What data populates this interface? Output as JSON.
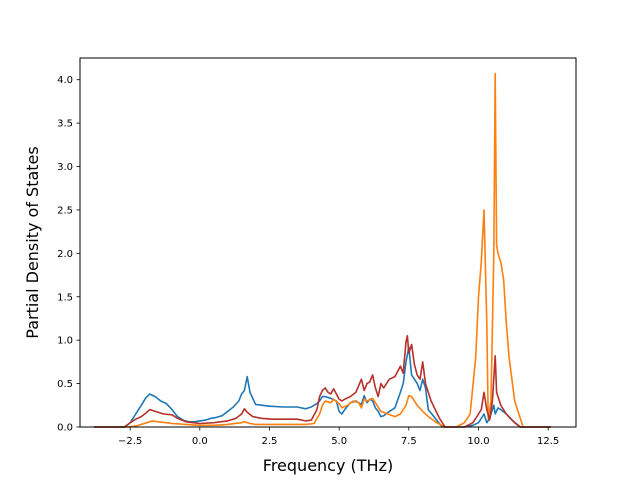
{
  "chart_data": {
    "type": "line",
    "title": "",
    "xlabel": "Frequency (THz)",
    "ylabel": "Partial Density of States",
    "xlim": [
      -4.3,
      13.5
    ],
    "ylim": [
      0,
      4.25
    ],
    "xticks": [
      -2.5,
      0.0,
      2.5,
      5.0,
      7.5,
      10.0,
      12.5
    ],
    "xtick_labels": [
      "−2.5",
      "0.0",
      "2.5",
      "5.0",
      "7.5",
      "10.0",
      "12.5"
    ],
    "yticks": [
      0.0,
      0.5,
      1.0,
      1.5,
      2.0,
      2.5,
      3.0,
      3.5,
      4.0
    ],
    "ytick_labels": [
      "0.0",
      "0.5",
      "1.0",
      "1.5",
      "2.0",
      "2.5",
      "3.0",
      "3.5",
      "4.0"
    ],
    "grid": false,
    "series": [
      {
        "color": "#1f77b4",
        "x": [
          -3.8,
          -2.7,
          -2.5,
          -2.3,
          -2.1,
          -1.95,
          -1.8,
          -1.6,
          -1.4,
          -1.2,
          -1.0,
          -0.8,
          -0.6,
          -0.4,
          -0.2,
          0.0,
          0.2,
          0.4,
          0.6,
          0.8,
          1.0,
          1.2,
          1.4,
          1.5,
          1.6,
          1.7,
          1.8,
          2.0,
          2.5,
          3.0,
          3.5,
          3.8,
          4.0,
          4.2,
          4.3,
          4.4,
          4.5,
          4.7,
          4.9,
          5.0,
          5.1,
          5.2,
          5.4,
          5.6,
          5.8,
          5.9,
          6.0,
          6.1,
          6.2,
          6.3,
          6.4,
          6.5,
          6.6,
          6.8,
          7.0,
          7.2,
          7.3,
          7.4,
          7.5,
          7.6,
          7.7,
          7.8,
          7.9,
          8.0,
          8.1,
          8.2,
          8.5,
          8.7,
          9.0,
          9.5,
          9.8,
          10.0,
          10.2,
          10.3,
          10.4,
          10.5,
          10.55,
          10.6,
          10.7,
          10.8,
          11.0,
          11.2,
          11.5,
          12.0,
          12.6
        ],
        "y": [
          0,
          0,
          0.05,
          0.15,
          0.25,
          0.33,
          0.38,
          0.35,
          0.3,
          0.27,
          0.2,
          0.12,
          0.08,
          0.06,
          0.06,
          0.07,
          0.08,
          0.1,
          0.11,
          0.13,
          0.18,
          0.23,
          0.3,
          0.38,
          0.42,
          0.58,
          0.4,
          0.26,
          0.24,
          0.23,
          0.23,
          0.21,
          0.23,
          0.27,
          0.3,
          0.35,
          0.35,
          0.33,
          0.3,
          0.18,
          0.15,
          0.2,
          0.28,
          0.3,
          0.26,
          0.36,
          0.28,
          0.32,
          0.3,
          0.22,
          0.18,
          0.12,
          0.13,
          0.18,
          0.22,
          0.4,
          0.5,
          0.75,
          0.92,
          0.6,
          0.55,
          0.5,
          0.42,
          0.55,
          0.45,
          0.2,
          0.08,
          0,
          0,
          0,
          0.02,
          0.05,
          0.15,
          0.05,
          0.1,
          0.2,
          0.25,
          0.15,
          0.22,
          0.2,
          0.15,
          0.08,
          0,
          0,
          0
        ]
      },
      {
        "color": "#ff7f0e",
        "x": [
          -3.8,
          -2.6,
          -2.3,
          -2.1,
          -1.9,
          -1.7,
          -1.5,
          -1.2,
          -1.0,
          -0.5,
          0.0,
          0.5,
          1.0,
          1.5,
          1.6,
          1.8,
          2.0,
          3.0,
          3.8,
          4.1,
          4.3,
          4.4,
          4.5,
          4.7,
          4.8,
          5.0,
          5.1,
          5.3,
          5.5,
          5.7,
          5.8,
          5.9,
          6.0,
          6.2,
          6.3,
          6.5,
          7.0,
          7.2,
          7.4,
          7.5,
          7.6,
          7.8,
          8.0,
          8.2,
          8.5,
          8.8,
          9.2,
          9.5,
          9.7,
          9.9,
          10.0,
          10.1,
          10.2,
          10.3,
          10.35,
          10.45,
          10.55,
          10.6,
          10.65,
          10.7,
          10.8,
          10.9,
          11.0,
          11.1,
          11.3,
          11.6,
          12.0,
          12.6
        ],
        "y": [
          0,
          0,
          0.01,
          0.03,
          0.05,
          0.07,
          0.06,
          0.05,
          0.04,
          0.03,
          0.02,
          0.02,
          0.03,
          0.05,
          0.06,
          0.04,
          0.03,
          0.03,
          0.03,
          0.04,
          0.15,
          0.25,
          0.3,
          0.28,
          0.32,
          0.27,
          0.22,
          0.25,
          0.3,
          0.28,
          0.22,
          0.32,
          0.3,
          0.33,
          0.28,
          0.18,
          0.12,
          0.15,
          0.25,
          0.36,
          0.35,
          0.25,
          0.18,
          0.12,
          0.05,
          0,
          0,
          0.05,
          0.15,
          0.8,
          1.5,
          1.9,
          2.5,
          1.2,
          0.1,
          0.3,
          2.0,
          4.07,
          2.1,
          2.0,
          1.9,
          1.7,
          1.2,
          0.8,
          0.3,
          0,
          0,
          0
        ]
      },
      {
        "color": "#b5312a",
        "x": [
          -3.8,
          -2.7,
          -2.5,
          -2.3,
          -2.1,
          -1.9,
          -1.8,
          -1.6,
          -1.3,
          -1.0,
          -0.8,
          -0.5,
          0.0,
          0.5,
          1.0,
          1.3,
          1.5,
          1.6,
          1.7,
          1.9,
          2.2,
          2.6,
          3.0,
          3.5,
          3.8,
          4.0,
          4.2,
          4.3,
          4.4,
          4.5,
          4.6,
          4.7,
          4.8,
          4.9,
          5.0,
          5.1,
          5.2,
          5.4,
          5.6,
          5.8,
          5.9,
          6.0,
          6.1,
          6.2,
          6.3,
          6.4,
          6.5,
          6.6,
          6.8,
          7.0,
          7.2,
          7.3,
          7.4,
          7.45,
          7.5,
          7.6,
          7.7,
          7.8,
          7.9,
          8.0,
          8.1,
          8.3,
          8.6,
          8.8,
          9.5,
          9.8,
          10.0,
          10.1,
          10.2,
          10.3,
          10.4,
          10.5,
          10.6,
          10.65,
          10.7,
          10.8,
          11.0,
          11.3,
          11.5,
          12.0,
          12.6
        ],
        "y": [
          0,
          0,
          0.05,
          0.09,
          0.12,
          0.17,
          0.2,
          0.18,
          0.15,
          0.14,
          0.1,
          0.06,
          0.04,
          0.05,
          0.07,
          0.1,
          0.15,
          0.21,
          0.17,
          0.12,
          0.1,
          0.09,
          0.09,
          0.09,
          0.07,
          0.08,
          0.2,
          0.35,
          0.42,
          0.45,
          0.4,
          0.38,
          0.44,
          0.38,
          0.32,
          0.3,
          0.32,
          0.35,
          0.4,
          0.55,
          0.42,
          0.5,
          0.52,
          0.6,
          0.45,
          0.35,
          0.5,
          0.45,
          0.55,
          0.58,
          0.7,
          0.62,
          0.98,
          1.05,
          0.85,
          0.95,
          0.72,
          0.6,
          0.55,
          0.75,
          0.5,
          0.3,
          0.1,
          0,
          0,
          0.05,
          0.15,
          0.2,
          0.4,
          0.2,
          0.08,
          0.3,
          0.82,
          0.4,
          0.35,
          0.25,
          0.15,
          0.05,
          0,
          0,
          0
        ]
      }
    ]
  }
}
